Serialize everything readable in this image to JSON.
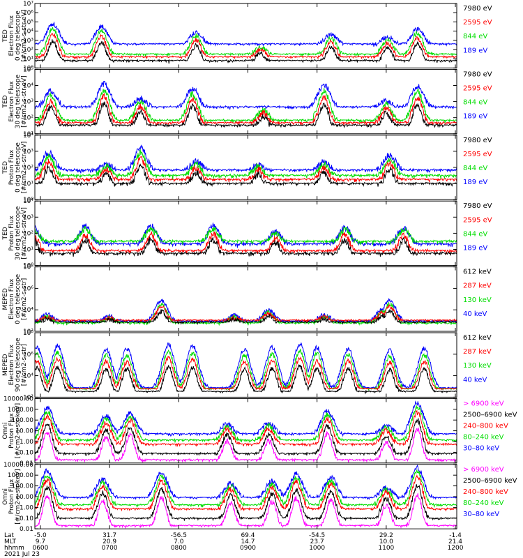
{
  "chart_data": {
    "type": "line",
    "footer": {
      "row_labels": [
        "Lat",
        "MLT",
        "hhmm",
        "2021 Jul 23"
      ],
      "ticks": [
        {
          "lat": "-5.0",
          "mlt": "9.7",
          "hhmm": "0600"
        },
        {
          "lat": "31.7",
          "mlt": "20.9",
          "hhmm": "0700"
        },
        {
          "lat": "-56.5",
          "mlt": "7.0",
          "hhmm": "0800"
        },
        {
          "lat": "69.4",
          "mlt": "14.7",
          "hhmm": "0900"
        },
        {
          "lat": "-54.5",
          "mlt": "23.7",
          "hhmm": "1000"
        },
        {
          "lat": "29.2",
          "mlt": "10.0",
          "hhmm": "1100"
        },
        {
          "lat": "-1.4",
          "mlt": "21.4",
          "hhmm": "1200"
        }
      ]
    },
    "colors": {
      "blue": "#0000ff",
      "red": "#ff0000",
      "green": "#00dd00",
      "black": "#000000",
      "magenta": "#ff00ff"
    },
    "panels": [
      {
        "ylabel": [
          "TED",
          "Electron Flux",
          "0 deg telescope",
          "[#/cm2-s-str-eV]"
        ],
        "yticks": [
          "10⁰",
          "10¹",
          "10²",
          "10³",
          "10⁴",
          "10⁵",
          "10⁶",
          "10⁷"
        ],
        "log_range": [
          0,
          7
        ],
        "series": [
          {
            "label": "7980 eV",
            "color": "#000000",
            "base": 0.6
          },
          {
            "label": "2595 eV",
            "color": "#ff0000",
            "base": 1.0
          },
          {
            "label": "844 eV",
            "color": "#00dd00",
            "base": 1.3
          },
          {
            "label": "189 eV",
            "color": "#0000ff",
            "base": 2.4
          }
        ],
        "events": [
          {
            "hour": 0.18,
            "peak": 4.8
          },
          {
            "hour": 0.88,
            "peak": 4.5
          },
          {
            "hour": 2.25,
            "peak": 3.9
          },
          {
            "hour": 3.18,
            "peak": 2.4
          },
          {
            "hour": 4.2,
            "peak": 3.6
          },
          {
            "hour": 5.02,
            "peak": 3.4
          },
          {
            "hour": 5.45,
            "peak": 4.2
          }
        ]
      },
      {
        "ylabel": [
          "TED",
          "Electron Flux",
          "30 deg telescope",
          "[#/cm2-s-str-eV]"
        ],
        "yticks": [
          "10¹",
          "10²",
          "10³",
          "10⁴",
          "10⁵"
        ],
        "log_range": [
          0.5,
          5.8
        ],
        "series": [
          {
            "label": "7980 eV",
            "color": "#000000",
            "base": 1.0
          },
          {
            "label": "2595 eV",
            "color": "#ff0000",
            "base": 1.2
          },
          {
            "label": "844 eV",
            "color": "#00dd00",
            "base": 1.4
          },
          {
            "label": "189 eV",
            "color": "#0000ff",
            "base": 2.5
          }
        ],
        "events": [
          {
            "hour": 0.15,
            "peak": 4.0
          },
          {
            "hour": 0.92,
            "peak": 4.6
          },
          {
            "hour": 1.45,
            "peak": 3.4
          },
          {
            "hour": 2.2,
            "peak": 4.2
          },
          {
            "hour": 3.22,
            "peak": 2.6
          },
          {
            "hour": 4.1,
            "peak": 4.5
          },
          {
            "hour": 5.0,
            "peak": 3.2
          },
          {
            "hour": 5.45,
            "peak": 4.4
          }
        ]
      },
      {
        "ylabel": [
          "TED",
          "Proton Flux",
          "0 deg telescope",
          "[#/cm2-s-str-eV]"
        ],
        "yticks": [
          "10⁰",
          "10¹",
          "10²",
          "10³",
          "10⁴"
        ],
        "log_range": [
          0,
          4.8
        ],
        "series": [
          {
            "label": "7980 eV",
            "color": "#000000",
            "base": 1.0
          },
          {
            "label": "2595 eV",
            "color": "#ff0000",
            "base": 1.3
          },
          {
            "label": "844 eV",
            "color": "#00dd00",
            "base": 1.6
          },
          {
            "label": "189 eV",
            "color": "#0000ff",
            "base": 2.0
          }
        ],
        "events": [
          {
            "hour": 0.12,
            "peak": 3.5
          },
          {
            "hour": 0.95,
            "peak": 2.6
          },
          {
            "hour": 1.45,
            "peak": 3.8
          },
          {
            "hour": 2.25,
            "peak": 2.8
          },
          {
            "hour": 3.15,
            "peak": 2.6
          },
          {
            "hour": 4.1,
            "peak": 2.8
          },
          {
            "hour": 5.05,
            "peak": 3.3
          }
        ]
      },
      {
        "ylabel": [
          "TED",
          "Proton Flux",
          "30 deg telescope",
          "[#/cm2-s-str-eV]"
        ],
        "yticks": [
          "10⁰",
          "10¹",
          "10²",
          "10³",
          "10⁴"
        ],
        "log_range": [
          0,
          4.8
        ],
        "series": [
          {
            "label": "7980 eV",
            "color": "#000000",
            "base": 0.7
          },
          {
            "label": "2595 eV",
            "color": "#ff0000",
            "base": 0.9
          },
          {
            "label": "844 eV",
            "color": "#00dd00",
            "base": 1.6
          },
          {
            "label": "189 eV",
            "color": "#0000ff",
            "base": 1.4
          }
        ],
        "events": [
          {
            "hour": -0.1,
            "peak": 2.8
          },
          {
            "hour": 0.65,
            "peak": 2.9
          },
          {
            "hour": 1.6,
            "peak": 2.9
          },
          {
            "hour": 2.5,
            "peak": 2.9
          },
          {
            "hour": 3.4,
            "peak": 2.5
          },
          {
            "hour": 4.4,
            "peak": 2.8
          },
          {
            "hour": 5.25,
            "peak": 2.8
          }
        ]
      },
      {
        "ylabel": [
          "MEPED",
          "Electron Flux",
          "0 deg telescope",
          "[#/cm2-s-str]"
        ],
        "yticks": [
          "10²",
          "10⁴",
          "10⁶",
          "10⁸"
        ],
        "log_range": [
          1.2,
          8.2
        ],
        "series": [
          {
            "label": "612 keV",
            "color": "#000000",
            "base": 2.0
          },
          {
            "label": "287 keV",
            "color": "#ff0000",
            "base": 2.2
          },
          {
            "label": "130 keV",
            "color": "#00dd00",
            "base": 1.9
          },
          {
            "label": "40 keV",
            "color": "#0000ff",
            "base": 2.1
          }
        ],
        "events": [
          {
            "hour": 0.1,
            "peak": 3.0
          },
          {
            "hour": 1.0,
            "peak": 2.8
          },
          {
            "hour": 1.75,
            "peak": 4.5
          },
          {
            "hour": 2.8,
            "peak": 2.9
          },
          {
            "hour": 3.3,
            "peak": 3.5
          },
          {
            "hour": 4.1,
            "peak": 3.0
          },
          {
            "hour": 4.95,
            "peak": 3.6
          },
          {
            "hour": 5.05,
            "peak": 4.6
          }
        ]
      },
      {
        "ylabel": [
          "MEPED",
          "Electron Flux",
          "90 deg telescope",
          "[#/cm2-s-str]"
        ],
        "yticks": [
          "10²",
          "10⁴",
          "10⁶",
          "10⁸"
        ],
        "log_range": [
          1.2,
          8.2
        ],
        "series": [
          {
            "label": "612 keV",
            "color": "#000000",
            "base": 1.6
          },
          {
            "label": "287 keV",
            "color": "#ff0000",
            "base": 1.9
          },
          {
            "label": "130 keV",
            "color": "#00dd00",
            "base": 1.9
          },
          {
            "label": "40 keV",
            "color": "#0000ff",
            "base": 2.0
          }
        ],
        "events": [
          {
            "hour": -0.05,
            "peak": 6.6
          },
          {
            "hour": 0.25,
            "peak": 6.8
          },
          {
            "hour": 0.95,
            "peak": 6.4
          },
          {
            "hour": 1.25,
            "peak": 6.4
          },
          {
            "hour": 1.85,
            "peak": 6.9
          },
          {
            "hour": 2.2,
            "peak": 6.8
          },
          {
            "hour": 2.95,
            "peak": 6.4
          },
          {
            "hour": 3.35,
            "peak": 6.6
          },
          {
            "hour": 3.75,
            "peak": 7.0
          },
          {
            "hour": 4.0,
            "peak": 6.6
          },
          {
            "hour": 4.45,
            "peak": 6.5
          },
          {
            "hour": 5.05,
            "peak": 6.3
          },
          {
            "hour": 5.55,
            "peak": 6.5
          }
        ]
      },
      {
        "ylabel": [
          "Omni",
          "Proton Flux",
          "[#/cm2-s-str-keV]"
        ],
        "yticks": [
          "0.01",
          "0.10",
          "1.00",
          "10.00",
          "100.00",
          "1000.00",
          "10000.00"
        ],
        "log_range": [
          -2,
          4.2
        ],
        "series": [
          {
            "label": "> 6900 keV",
            "color": "#ff00ff",
            "base": -1.9
          },
          {
            "label": "2500–6900 keV",
            "color": "#000000",
            "base": -1.3
          },
          {
            "label": "240–800 keV",
            "color": "#ff0000",
            "base": -0.4
          },
          {
            "label": "80–240 keV",
            "color": "#00dd00",
            "base": 0.0
          },
          {
            "label": "30–80 keV",
            "color": "#0000ff",
            "base": 0.6
          }
        ],
        "events": [
          {
            "hour": 0.1,
            "peak": 3.3
          },
          {
            "hour": 0.95,
            "peak": 2.5
          },
          {
            "hour": 1.3,
            "peak": 2.8
          },
          {
            "hour": 2.7,
            "peak": 1.7
          },
          {
            "hour": 3.3,
            "peak": 1.8
          },
          {
            "hour": 4.15,
            "peak": 3.0
          },
          {
            "hour": 5.0,
            "peak": 1.6
          },
          {
            "hour": 5.45,
            "peak": 3.8
          }
        ]
      },
      {
        "ylabel": [
          "Omni",
          "Proton Flux",
          "[#/cm2-s-str-keV]"
        ],
        "yticks": [
          "0.01",
          "0.10",
          "1.00",
          "10.00",
          "100.00",
          "1000.00",
          "10000.00"
        ],
        "log_range": [
          -2,
          4.2
        ],
        "series": [
          {
            "label": "> 6900 keV",
            "color": "#ff00ff",
            "base": -1.9
          },
          {
            "label": "2500–6900 keV",
            "color": "#000000",
            "base": -1.2
          },
          {
            "label": "240–800 keV",
            "color": "#ff0000",
            "base": -0.3
          },
          {
            "label": "80–240 keV",
            "color": "#00dd00",
            "base": 0.1
          },
          {
            "label": "30–80 keV",
            "color": "#0000ff",
            "base": 0.8
          }
        ],
        "events": [
          {
            "hour": 0.1,
            "peak": 3.6
          },
          {
            "hour": 0.9,
            "peak": 2.8
          },
          {
            "hour": 1.75,
            "peak": 3.4
          },
          {
            "hour": 2.75,
            "peak": 2.4
          },
          {
            "hour": 3.35,
            "peak": 2.6
          },
          {
            "hour": 3.7,
            "peak": 3.3
          },
          {
            "hour": 4.2,
            "peak": 3.0
          },
          {
            "hour": 5.0,
            "peak": 2.0
          },
          {
            "hour": 5.45,
            "peak": 3.9
          }
        ]
      }
    ]
  }
}
